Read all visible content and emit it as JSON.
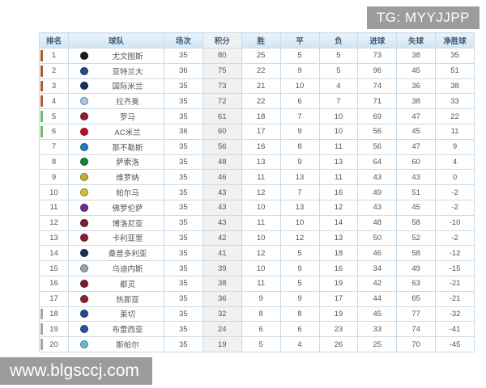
{
  "overlays": {
    "tg_tag": "TG: MYYJJPP",
    "site_watermark": "www.blgsccj.com",
    "box_color": "#9c9c9c"
  },
  "table": {
    "columns": [
      {
        "key": "rank",
        "label": "排名"
      },
      {
        "key": "team",
        "label": "球队"
      },
      {
        "key": "played",
        "label": "场次"
      },
      {
        "key": "points",
        "label": "积分"
      },
      {
        "key": "win",
        "label": "胜"
      },
      {
        "key": "draw",
        "label": "平"
      },
      {
        "key": "loss",
        "label": "负"
      },
      {
        "key": "gf",
        "label": "进球"
      },
      {
        "key": "ga",
        "label": "失球"
      },
      {
        "key": "gd",
        "label": "净胜球"
      }
    ],
    "zone_colors": {
      "champions": "#a85c38",
      "europa": "#74b374",
      "relegation": "#a5a5a5"
    },
    "rows": [
      {
        "rank": 1,
        "team": "尤文图斯",
        "zone": "champions",
        "icon_color": "#1a1a1a",
        "played": 35,
        "points": 80,
        "win": 25,
        "draw": 5,
        "loss": 5,
        "gf": 73,
        "ga": 38,
        "gd": 35
      },
      {
        "rank": 2,
        "team": "亚特兰大",
        "zone": "champions",
        "icon_color": "#1c4e86",
        "played": 36,
        "points": 75,
        "win": 22,
        "draw": 9,
        "loss": 5,
        "gf": 96,
        "ga": 45,
        "gd": 51
      },
      {
        "rank": 3,
        "team": "国际米兰",
        "zone": "champions",
        "icon_color": "#16335f",
        "played": 35,
        "points": 73,
        "win": 21,
        "draw": 10,
        "loss": 4,
        "gf": 74,
        "ga": 36,
        "gd": 38
      },
      {
        "rank": 4,
        "team": "拉齐奥",
        "zone": "champions",
        "icon_color": "#9ec7e8",
        "played": 35,
        "points": 72,
        "win": 22,
        "draw": 6,
        "loss": 7,
        "gf": 71,
        "ga": 38,
        "gd": 33
      },
      {
        "rank": 5,
        "team": "罗马",
        "zone": "europa",
        "icon_color": "#8e1f2f",
        "played": 35,
        "points": 61,
        "win": 18,
        "draw": 7,
        "loss": 10,
        "gf": 69,
        "ga": 47,
        "gd": 22
      },
      {
        "rank": 6,
        "team": "AC米兰",
        "zone": "europa",
        "icon_color": "#c0111f",
        "played": 36,
        "points": 60,
        "win": 17,
        "draw": 9,
        "loss": 10,
        "gf": 56,
        "ga": 45,
        "gd": 11
      },
      {
        "rank": 7,
        "team": "那不勒斯",
        "zone": "",
        "icon_color": "#1a7fc4",
        "played": 35,
        "points": 56,
        "win": 16,
        "draw": 8,
        "loss": 11,
        "gf": 56,
        "ga": 47,
        "gd": 9
      },
      {
        "rank": 8,
        "team": "萨索洛",
        "zone": "",
        "icon_color": "#12833c",
        "played": 35,
        "points": 48,
        "win": 13,
        "draw": 9,
        "loss": 13,
        "gf": 64,
        "ga": 60,
        "gd": 4
      },
      {
        "rank": 9,
        "team": "维罗纳",
        "zone": "",
        "icon_color": "#c9ad2a",
        "played": 35,
        "points": 46,
        "win": 11,
        "draw": 13,
        "loss": 11,
        "gf": 43,
        "ga": 43,
        "gd": 0
      },
      {
        "rank": 10,
        "team": "帕尔马",
        "zone": "",
        "icon_color": "#d8bb30",
        "played": 35,
        "points": 43,
        "win": 12,
        "draw": 7,
        "loss": 16,
        "gf": 49,
        "ga": 51,
        "gd": -2
      },
      {
        "rank": 11,
        "team": "佛罗伦萨",
        "zone": "",
        "icon_color": "#6a2c8e",
        "played": 35,
        "points": 43,
        "win": 10,
        "draw": 13,
        "loss": 12,
        "gf": 43,
        "ga": 45,
        "gd": -2
      },
      {
        "rank": 12,
        "team": "博洛尼亚",
        "zone": "",
        "icon_color": "#7d1f35",
        "played": 35,
        "points": 43,
        "win": 11,
        "draw": 10,
        "loss": 14,
        "gf": 48,
        "ga": 58,
        "gd": -10
      },
      {
        "rank": 13,
        "team": "卡利亚里",
        "zone": "",
        "icon_color": "#8c1c33",
        "played": 35,
        "points": 42,
        "win": 10,
        "draw": 12,
        "loss": 13,
        "gf": 50,
        "ga": 52,
        "gd": -2
      },
      {
        "rank": 14,
        "team": "桑普多利亚",
        "zone": "",
        "icon_color": "#1b2c5e",
        "played": 35,
        "points": 41,
        "win": 12,
        "draw": 5,
        "loss": 18,
        "gf": 46,
        "ga": 58,
        "gd": -12
      },
      {
        "rank": 15,
        "team": "乌迪内斯",
        "zone": "",
        "icon_color": "#9aa3ab",
        "played": 35,
        "points": 39,
        "win": 10,
        "draw": 9,
        "loss": 16,
        "gf": 34,
        "ga": 49,
        "gd": -15
      },
      {
        "rank": 16,
        "team": "都灵",
        "zone": "",
        "icon_color": "#7a1f2b",
        "played": 35,
        "points": 38,
        "win": 11,
        "draw": 5,
        "loss": 19,
        "gf": 42,
        "ga": 63,
        "gd": -21
      },
      {
        "rank": 17,
        "team": "热那亚",
        "zone": "",
        "icon_color": "#8c2332",
        "played": 35,
        "points": 36,
        "win": 9,
        "draw": 9,
        "loss": 17,
        "gf": 44,
        "ga": 65,
        "gd": -21
      },
      {
        "rank": 18,
        "team": "莱切",
        "zone": "relegation",
        "icon_color": "#274b8f",
        "played": 35,
        "points": 32,
        "win": 8,
        "draw": 8,
        "loss": 19,
        "gf": 45,
        "ga": 77,
        "gd": -32
      },
      {
        "rank": 19,
        "team": "布雷西亚",
        "zone": "relegation",
        "icon_color": "#2b4f9e",
        "played": 35,
        "points": 24,
        "win": 6,
        "draw": 6,
        "loss": 23,
        "gf": 33,
        "ga": 74,
        "gd": -41
      },
      {
        "rank": 20,
        "team": "斯帕尔",
        "zone": "relegation",
        "icon_color": "#69b7dc",
        "played": 35,
        "points": 19,
        "win": 5,
        "draw": 4,
        "loss": 26,
        "gf": 25,
        "ga": 70,
        "gd": -45
      }
    ]
  }
}
